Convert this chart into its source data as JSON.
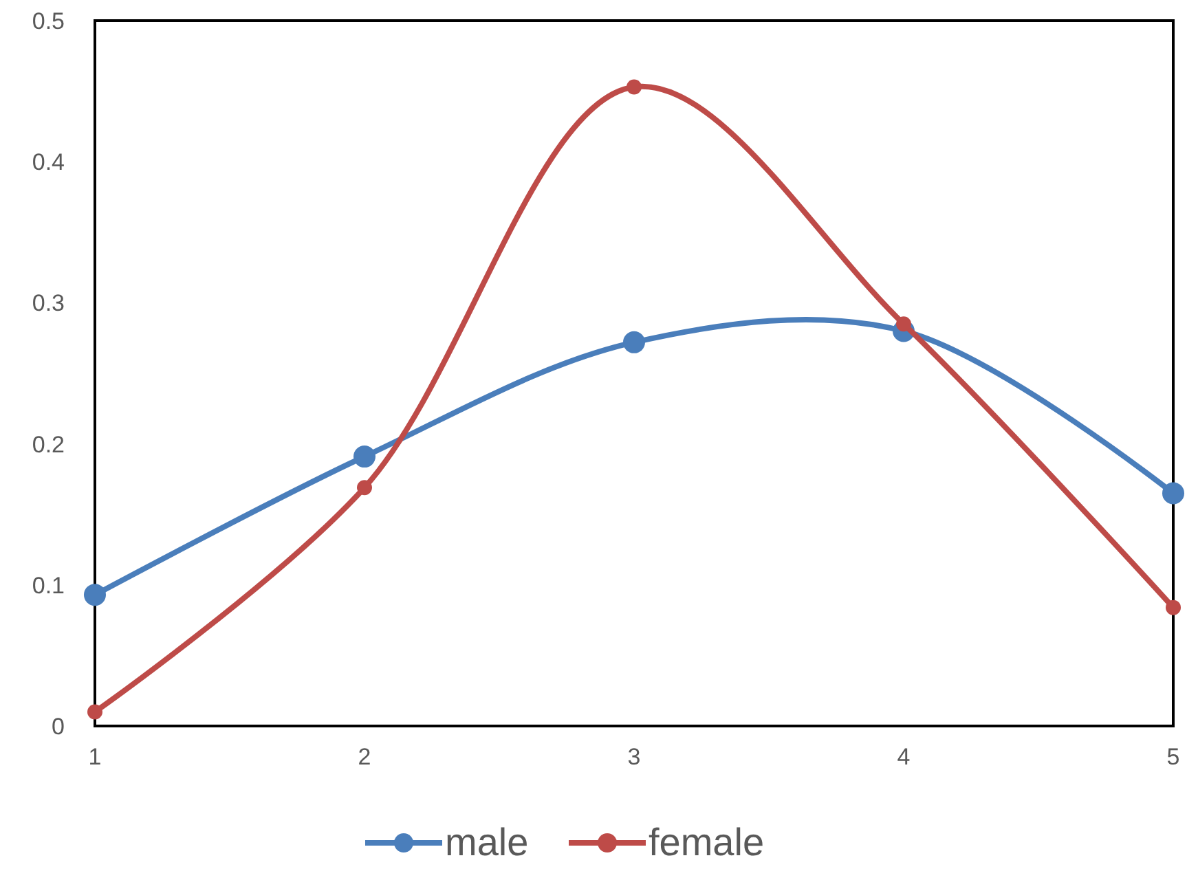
{
  "chart_data": {
    "type": "line",
    "x": [
      1,
      2,
      3,
      4,
      5
    ],
    "xlim": [
      1,
      5
    ],
    "xticks": [
      1,
      2,
      3,
      4,
      5
    ],
    "ylim": [
      0,
      0.5
    ],
    "yticks": [
      0,
      0.1,
      0.2,
      0.3,
      0.4,
      0.5
    ],
    "grid": false,
    "legend": "bottom",
    "marker": "circle",
    "line_style": "solid",
    "series": [
      {
        "name": "male",
        "color": "#4a7ebb",
        "values": [
          0.093,
          0.191,
          0.272,
          0.28,
          0.165
        ]
      },
      {
        "name": "female",
        "color": "#be4b48",
        "values": [
          0.01,
          0.169,
          0.453,
          0.285,
          0.084
        ]
      }
    ]
  }
}
